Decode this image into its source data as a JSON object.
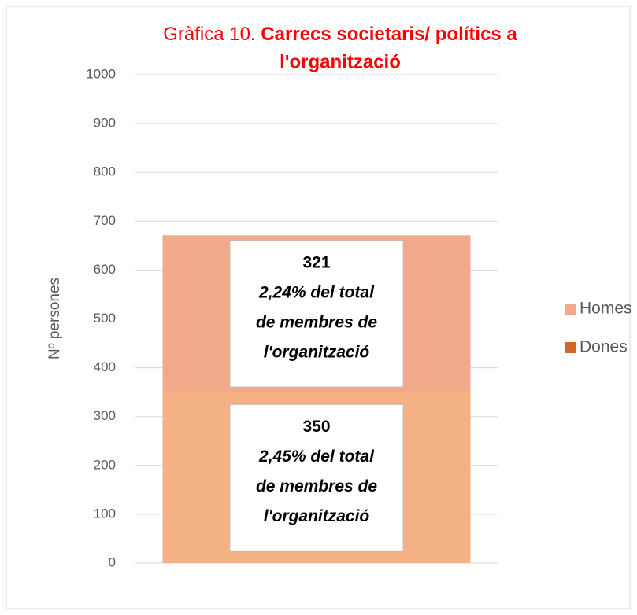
{
  "chart_data": {
    "type": "stacked_bar",
    "title": [
      "Gràfica 10.",
      "Carrecs societaris/ polítics a",
      "l'organització"
    ],
    "y_label": "Nº persones",
    "categories": [
      null
    ],
    "series": [
      {
        "name": "Homes",
        "color": "#f0a98a",
        "legend_color": "#f0a98a",
        "values": [
          321
        ],
        "annotation": [
          "2,24% del total",
          "de membres de",
          "l'organització"
        ]
      },
      {
        "name": "Dones",
        "color": "#f4b183",
        "legend_color": "#d0692a",
        "values": [
          350
        ],
        "annotation": [
          "2,45% del total",
          "de membres de",
          "l'organització"
        ]
      }
    ],
    "ylim": [
      0,
      1000
    ],
    "yticks": [
      0,
      100,
      200,
      300,
      400,
      500,
      600,
      700,
      800,
      900,
      1000
    ],
    "grid": true,
    "legend": "right"
  }
}
